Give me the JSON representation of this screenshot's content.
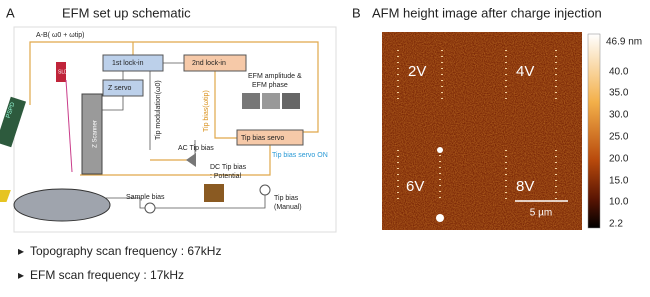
{
  "panel_a": {
    "label": "A",
    "title": "EFM set up schematic",
    "diagram": {
      "feedback_signal": "A-B( ω0 + ωtip)",
      "first_lockin": "1st lock-in",
      "second_lockin": "2nd lock-in",
      "z_servo": "Z servo",
      "tip_modulation": "Tip modulation(ω0)",
      "tip_bias_freq": "Tip bias(ωtip)",
      "efm_output": "EFM amplitude &",
      "efm_output_2": "EFM phase",
      "tip_bias_servo": "Tip bias servo",
      "tip_bias_servo_on": "Tip bias servo ON",
      "ac_tip_bias": "AC Tip bias",
      "dc_tip_bias": "DC Tip bias",
      "potential": ": Potential",
      "sample_bias": "Sample bias",
      "tip_bias_manual": "Tip bias",
      "manual": "(Manual)",
      "sld": "SLD",
      "pspd": "PSPD",
      "z_scanner": "Z Scanner"
    },
    "bullets": [
      "Topography scan frequency : 67kHz",
      "EFM scan frequency : 17kHz"
    ]
  },
  "panel_b": {
    "label": "B",
    "title": "AFM height image after charge injection",
    "image_labels": [
      "2V",
      "4V",
      "6V",
      "8V"
    ],
    "scale_bar": "5 µm",
    "colorbar_ticks": [
      "46.9 nm",
      "40.0",
      "35.0",
      "30.0",
      "25.0",
      "20.0",
      "15.0",
      "10.0",
      "2.2"
    ]
  }
}
